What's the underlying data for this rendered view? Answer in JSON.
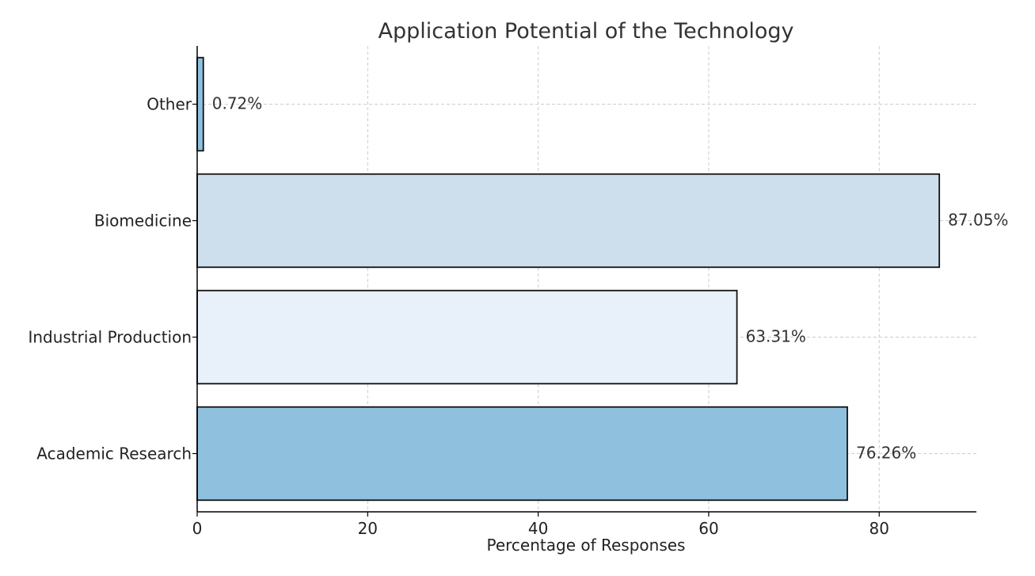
{
  "chart_data": {
    "type": "bar",
    "orientation": "horizontal",
    "title": "Application Potential of the Technology",
    "xlabel": "Percentage of Responses",
    "ylabel": "",
    "categories": [
      "Academic Research",
      "Industrial Production",
      "Biomedicine",
      "Other"
    ],
    "values": [
      76.26,
      63.31,
      87.05,
      0.72
    ],
    "value_labels": [
      "76.26%",
      "63.31%",
      "87.05%",
      "0.72%"
    ],
    "bar_colors": [
      "#8fc1de",
      "#e8f0fa",
      "#cddfed",
      "#8fc1de"
    ],
    "xlim": [
      0,
      91.4
    ],
    "x_ticks": [
      0,
      20,
      40,
      60,
      80
    ],
    "grid": true,
    "legend": "none"
  }
}
